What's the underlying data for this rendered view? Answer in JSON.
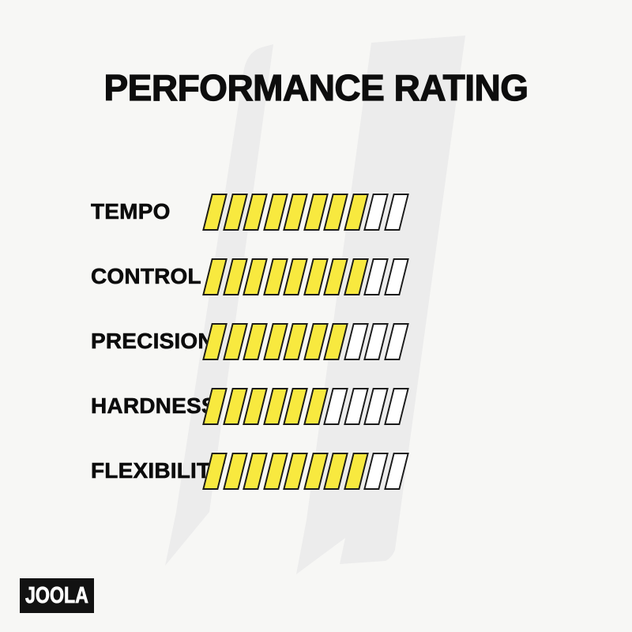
{
  "title": "PERFORMANCE RATING",
  "brand": {
    "logo_text": "JOOLA"
  },
  "colors": {
    "background": "#f7f7f5",
    "watermark": "#ececec",
    "filled": "#f8e93f",
    "empty": "#ffffff",
    "outline": "#1a1a1a",
    "text": "#0d0d0d",
    "logo_bg": "#121212",
    "logo_text": "#ffffff"
  },
  "rows": [
    {
      "label": "TEMPO",
      "value": 8,
      "max": 10
    },
    {
      "label": "CONTROL",
      "value": 8,
      "max": 10
    },
    {
      "label": "PRECISION",
      "value": 7,
      "max": 10
    },
    {
      "label": "HARDNESS",
      "value": 6,
      "max": 10
    },
    {
      "label": "FLEXIBILITY",
      "value": 8,
      "max": 10
    }
  ],
  "chart_data": {
    "type": "bar",
    "title": "PERFORMANCE RATING",
    "categories": [
      "TEMPO",
      "CONTROL",
      "PRECISION",
      "HARDNESS",
      "FLEXIBILITY"
    ],
    "values": [
      8,
      8,
      7,
      6,
      8
    ],
    "max_scale": 10,
    "style": "segmented parallelogram bars, yellow filled / white empty",
    "legend": "none",
    "orientation": "horizontal"
  }
}
